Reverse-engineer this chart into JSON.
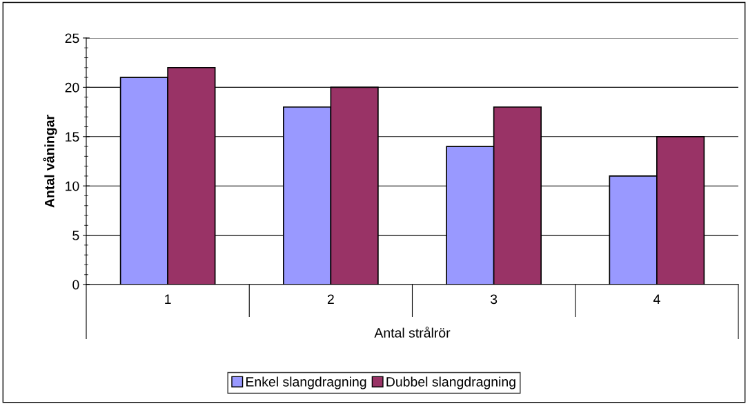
{
  "chart_data": {
    "type": "bar",
    "xlabel": "Antal strålrör",
    "ylabel": "Antal våningar",
    "categories": [
      "1",
      "2",
      "3",
      "4"
    ],
    "series": [
      {
        "name": "Enkel slangdragning",
        "color": "#9999ff",
        "values": [
          21,
          18,
          14,
          11
        ]
      },
      {
        "name": "Dubbel slangdragning",
        "color": "#993366",
        "values": [
          22,
          20,
          18,
          15
        ]
      }
    ],
    "ylim": [
      0,
      25
    ],
    "yticks": [
      0,
      5,
      10,
      15,
      20,
      25
    ],
    "grid": "y",
    "legend": "bottom"
  }
}
